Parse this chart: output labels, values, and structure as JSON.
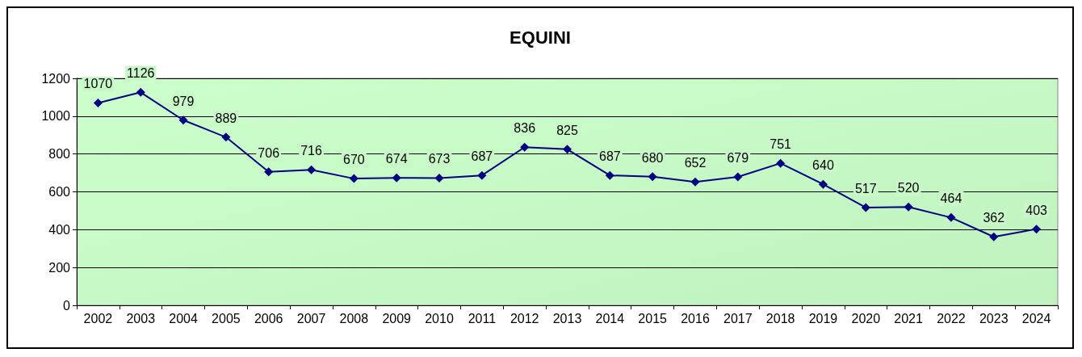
{
  "chart_data": {
    "type": "line",
    "title": "EQUINI",
    "categories": [
      "2002",
      "2003",
      "2004",
      "2005",
      "2006",
      "2007",
      "2008",
      "2009",
      "2010",
      "2011",
      "2012",
      "2013",
      "2014",
      "2015",
      "2016",
      "2017",
      "2018",
      "2019",
      "2020",
      "2021",
      "2022",
      "2023",
      "2024"
    ],
    "series": [
      {
        "color": "#000080",
        "values": [
          1070,
          1126,
          979,
          889,
          706,
          716,
          670,
          674,
          673,
          687,
          836,
          825,
          687,
          680,
          652,
          679,
          751,
          640,
          517,
          520,
          464,
          362,
          403
        ]
      }
    ],
    "ylim": [
      0,
      1200
    ],
    "yticks": [
      0,
      200,
      400,
      600,
      800,
      1000,
      1200
    ],
    "grid": "y",
    "marker": "diamond",
    "line_style": "solid",
    "data_labels": true
  }
}
